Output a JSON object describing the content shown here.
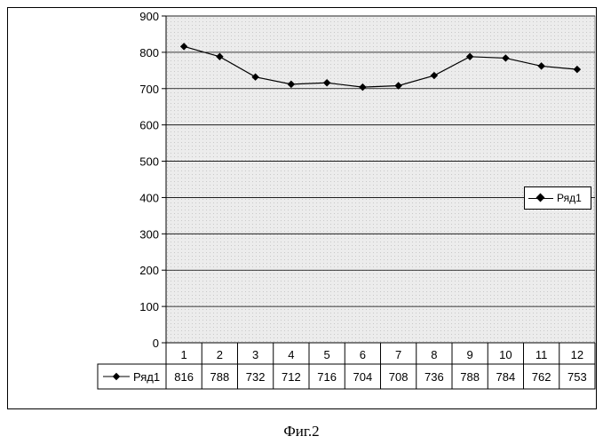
{
  "chart_data": {
    "type": "line",
    "categories": [
      "1",
      "2",
      "3",
      "4",
      "5",
      "6",
      "7",
      "8",
      "9",
      "10",
      "11",
      "12"
    ],
    "series": [
      {
        "name": "Ряд1",
        "values": [
          816,
          788,
          732,
          712,
          716,
          704,
          708,
          736,
          788,
          784,
          762,
          753
        ]
      }
    ],
    "yticks": [
      "0",
      "100",
      "200",
      "300",
      "400",
      "500",
      "600",
      "700",
      "800",
      "900"
    ],
    "ylim": [
      0,
      900
    ],
    "grid": true,
    "legend_position": "right",
    "data_table": true
  },
  "caption": "Фиг.2"
}
